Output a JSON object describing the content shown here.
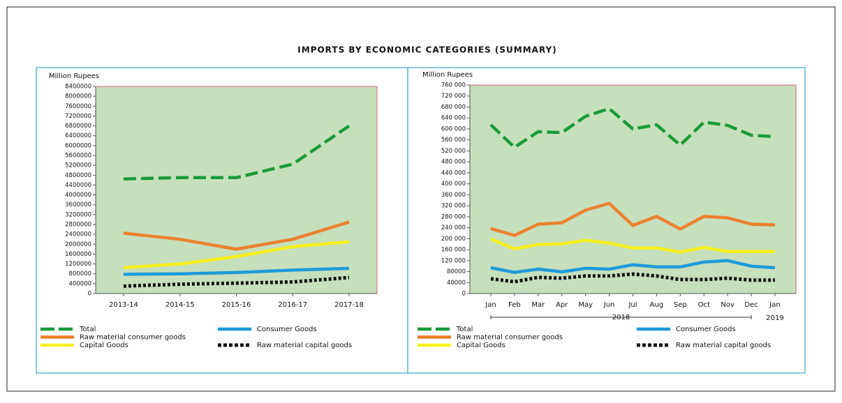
{
  "title": "IMPORTS BY ECONOMIC CATEGORIES (SUMMARY)",
  "chart_data": [
    {
      "type": "line",
      "y_label": "Million Rupees",
      "categories": [
        "2013-14",
        "2014-15",
        "2015-16",
        "2016-17",
        "2017-18"
      ],
      "ylim": [
        0,
        8400000
      ],
      "yticks": [
        0,
        400000,
        800000,
        1200000,
        1600000,
        2000000,
        2400000,
        2800000,
        3200000,
        3600000,
        4000000,
        4400000,
        4800000,
        5200000,
        5600000,
        6000000,
        6400000,
        6800000,
        7200000,
        7600000,
        8000000,
        8400000
      ],
      "series": [
        {
          "name": "Total",
          "color": "#1a9a3a",
          "style": "dashed",
          "values": [
            4650000,
            4700000,
            4700000,
            5250000,
            6800000
          ]
        },
        {
          "name": "Raw material consumer goods",
          "color": "#e8822e",
          "style": "solid",
          "values": [
            2450000,
            2200000,
            1800000,
            2200000,
            2900000
          ]
        },
        {
          "name": "Capital Goods",
          "color": "#f5f01e",
          "style": "solid",
          "values": [
            1050000,
            1200000,
            1500000,
            1900000,
            2100000
          ]
        },
        {
          "name": "Consumer Goods",
          "color": "#1e9ad6",
          "style": "solid",
          "values": [
            780000,
            800000,
            850000,
            950000,
            1020000
          ]
        },
        {
          "name": "Raw material capital goods",
          "color": "#111111",
          "style": "dotted",
          "values": [
            300000,
            380000,
            420000,
            470000,
            650000
          ]
        }
      ]
    },
    {
      "type": "line",
      "y_label": "Million Rupees",
      "categories": [
        "Jan",
        "Feb",
        "Mar",
        "Apr",
        "May",
        "Jun",
        "Jul",
        "Aug",
        "Sep",
        "Oct",
        "Nov",
        "Dec",
        "Jan"
      ],
      "groups": [
        "2018",
        "2019"
      ],
      "ylim": [
        0,
        760000
      ],
      "yticks": [
        0,
        40000,
        80000,
        {
          "value": 120000,
          "label": "120 000"
        },
        {
          "value": 160000,
          "label": "160 000"
        },
        {
          "value": 200000,
          "label": "200 000"
        },
        {
          "value": 240000,
          "label": "240 000"
        },
        {
          "value": 280000,
          "label": "280 000"
        },
        {
          "value": 320000,
          "label": "320 000"
        },
        {
          "value": 360000,
          "label": "360 000"
        },
        {
          "value": 400000,
          "label": "400 000"
        },
        {
          "value": 440000,
          "label": "440 000"
        },
        {
          "value": 480000,
          "label": "480 000"
        },
        {
          "value": 520000,
          "label": "520 000"
        },
        {
          "value": 560000,
          "label": "560 000"
        },
        {
          "value": 600000,
          "label": "600 000"
        },
        {
          "value": 640000,
          "label": "640 000"
        },
        {
          "value": 680000,
          "label": "680 000"
        },
        {
          "value": 720000,
          "label": "720 000"
        },
        {
          "value": 760000,
          "label": "760 000"
        }
      ],
      "series": [
        {
          "name": "Total",
          "color": "#1a9a3a",
          "style": "dashed",
          "values": [
            615000,
            533000,
            590000,
            587000,
            646000,
            674000,
            600000,
            615000,
            541000,
            625000,
            613000,
            577000,
            572000
          ]
        },
        {
          "name": "Raw material consumer goods",
          "color": "#e8822e",
          "style": "solid",
          "values": [
            237000,
            212000,
            253000,
            258000,
            304000,
            329000,
            248000,
            281000,
            235000,
            281000,
            276000,
            253000,
            250000
          ]
        },
        {
          "name": "Capital Goods",
          "color": "#f5f01e",
          "style": "solid",
          "values": [
            199000,
            163000,
            179000,
            181000,
            194000,
            184000,
            166000,
            166000,
            151000,
            168000,
            153000,
            153000,
            153000
          ]
        },
        {
          "name": "Consumer Goods",
          "color": "#1e9ad6",
          "style": "solid",
          "values": [
            94000,
            77000,
            89000,
            79000,
            92000,
            89000,
            105000,
            97000,
            97000,
            115000,
            120000,
            100000,
            94000
          ]
        },
        {
          "name": "Raw material capital goods",
          "color": "#111111",
          "style": "dotted",
          "values": [
            54000,
            43000,
            59000,
            56000,
            64000,
            64000,
            71000,
            64000,
            51000,
            51000,
            56000,
            49000,
            49000
          ]
        }
      ]
    }
  ]
}
